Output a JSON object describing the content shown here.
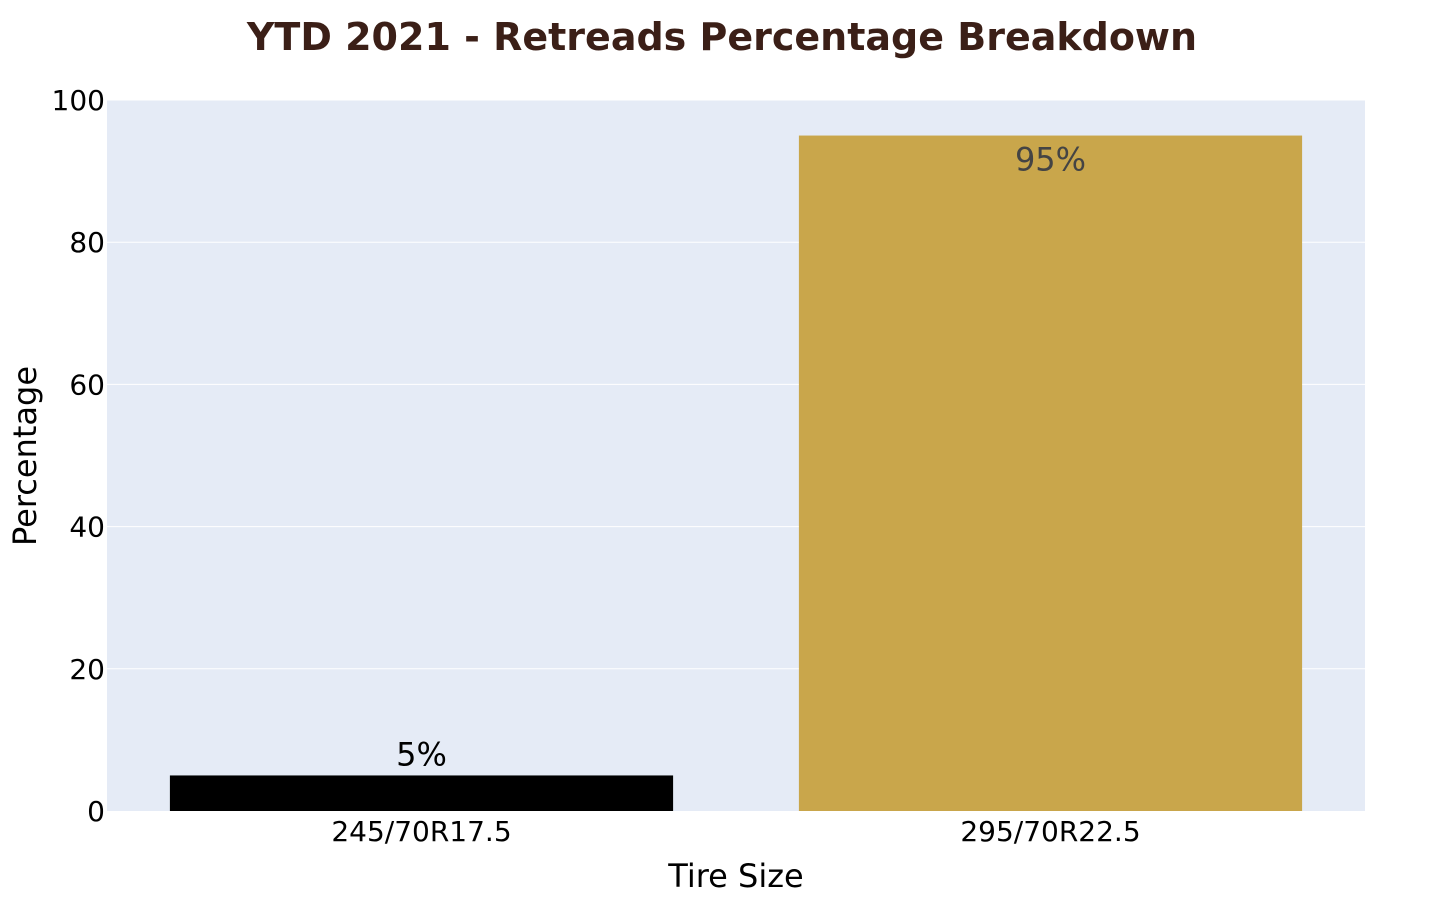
{
  "chart_data": {
    "type": "bar",
    "title": "YTD 2021 - Retreads Percentage Breakdown",
    "xlabel": "Tire Size",
    "ylabel": "Percentage",
    "categories": [
      "245/70R17.5",
      "295/70R22.5"
    ],
    "values": [
      5,
      95
    ],
    "value_labels": [
      "5%",
      "95%"
    ],
    "bar_colors": [
      "#000000",
      "#c9a64b"
    ],
    "value_label_colors": [
      "#000000",
      "#444444"
    ],
    "value_label_positions": [
      "outside",
      "inside"
    ],
    "ylim": [
      0,
      100
    ],
    "yticks": [
      0,
      20,
      40,
      60,
      80,
      100
    ],
    "ytick_labels": [
      "0",
      "20",
      "40",
      "60",
      "80",
      "100"
    ],
    "grid": true,
    "legend": false,
    "plot_background": "#e5ebf6",
    "gridline_color": "#ffffff",
    "title_color": "#3b1f17"
  }
}
